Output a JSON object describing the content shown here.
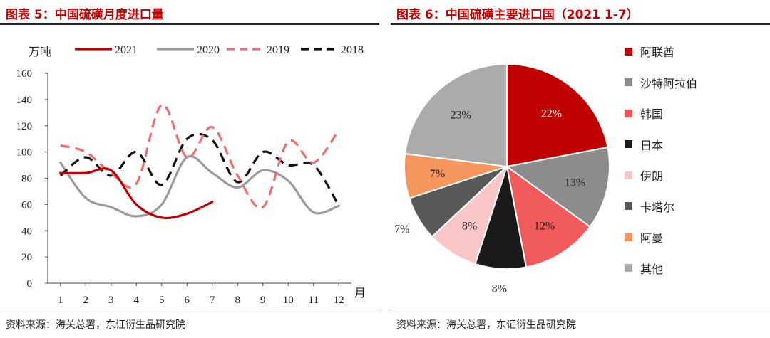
{
  "left": {
    "title": "图表 5：中国硫磺月度进口量",
    "source": "资料来源：海关总署，东证衍生品研究院",
    "chart_data": {
      "type": "line",
      "xlabel": "月",
      "ylabel": "万吨",
      "x": [
        1,
        2,
        3,
        4,
        5,
        6,
        7,
        8,
        9,
        10,
        11,
        12
      ],
      "xlim": [
        0.5,
        12.5
      ],
      "ylim": [
        0,
        160
      ],
      "yticks": [
        0,
        20,
        40,
        60,
        80,
        100,
        120,
        140,
        160
      ],
      "legend_position": "top",
      "series": [
        {
          "name": "2021",
          "color": "#c00000",
          "dash": "solid",
          "values": [
            84,
            84,
            86,
            60,
            50,
            53,
            62,
            null,
            null,
            null,
            null,
            null
          ]
        },
        {
          "name": "2020",
          "color": "#9b9b9b",
          "dash": "solid",
          "values": [
            92,
            65,
            58,
            51,
            60,
            96,
            84,
            73,
            86,
            78,
            54,
            59
          ]
        },
        {
          "name": "2019",
          "color": "#f26d6d",
          "dash": "dashed",
          "values": [
            105,
            100,
            84,
            76,
            136,
            96,
            119,
            82,
            58,
            108,
            92,
            117
          ]
        },
        {
          "name": "2018",
          "color": "#111111",
          "dash": "dashed",
          "values": [
            82,
            96,
            82,
            100,
            75,
            110,
            109,
            77,
            100,
            90,
            90,
            59
          ]
        }
      ]
    }
  },
  "right": {
    "title": "图表 6：中国硫磺主要进口国（2021 1-7）",
    "source": "资料来源：海关总署，东证衍生品研究院",
    "chart_data": {
      "type": "pie",
      "start": "top, clockwise",
      "legend_position": "right",
      "slices": [
        {
          "name": "阿联酋",
          "value": 22,
          "label": "22%",
          "color": "#c00000",
          "label_color": "#ffffff",
          "label_pos": "inside"
        },
        {
          "name": "沙特阿拉伯",
          "value": 13,
          "label": "13%",
          "color": "#8c8c8c",
          "label_color": "#222222",
          "label_pos": "inside"
        },
        {
          "name": "韩国",
          "value": 12,
          "label": "12%",
          "color": "#f25b5b",
          "label_color": "#222222",
          "label_pos": "inside"
        },
        {
          "name": "日本",
          "value": 8,
          "label": "8%",
          "color": "#1a1a1a",
          "label_color": "#222222",
          "label_pos": "outside"
        },
        {
          "name": "伊朗",
          "value": 8,
          "label": "8%",
          "color": "#f9c6c6",
          "label_color": "#222222",
          "label_pos": "inside"
        },
        {
          "name": "卡塔尔",
          "value": 7,
          "label": "7%",
          "color": "#595959",
          "label_color": "#222222",
          "label_pos": "outside"
        },
        {
          "name": "阿曼",
          "value": 7,
          "label": "7%",
          "color": "#f4965e",
          "label_color": "#222222",
          "label_pos": "inside"
        },
        {
          "name": "其他",
          "value": 23,
          "label": "23%",
          "color": "#ababab",
          "label_color": "#222222",
          "label_pos": "inside"
        }
      ]
    }
  }
}
